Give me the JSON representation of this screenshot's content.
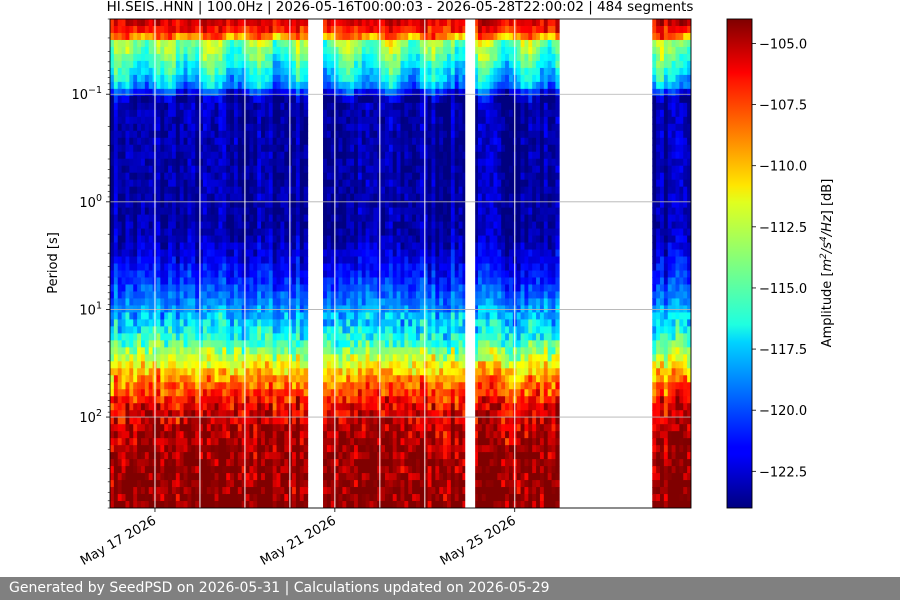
{
  "chart_data": {
    "type": "heatmap",
    "title": "HI.SEIS..HNN | 100.0Hz | 2026-05-16T00:00:03 - 2026-05-28T22:00:02 | 484 segments",
    "station": "HI.SEIS..HNN",
    "sampling_rate": "100.0Hz",
    "start": "2026-05-16T00:00:03",
    "end": "2026-05-28T22:00:02",
    "segment_count": 484,
    "ylabel": "Period [s]",
    "y_scale": "log",
    "y_inverted": true,
    "y_tick_labels": [
      {
        "base": "10",
        "exp": "−1",
        "period": 0.1
      },
      {
        "base": "10",
        "exp": "0",
        "period": 1
      },
      {
        "base": "10",
        "exp": "1",
        "period": 10
      },
      {
        "base": "10",
        "exp": "2",
        "period": 100
      }
    ],
    "ylim": [
      0.02,
      700
    ],
    "x_tick_labels": [
      "May 17 2026",
      "May 21 2026",
      "May 25 2026"
    ],
    "x_ticks_day_offset": [
      1,
      5,
      9
    ],
    "xlim_day_offset": [
      0,
      12.92
    ],
    "grid": "horizontal",
    "data_gaps_day_offset": [
      [
        4.42,
        4.72
      ],
      [
        7.9,
        8.12
      ],
      [
        10.0,
        12.05
      ]
    ],
    "segment_boundaries_day_offset": [
      1.0,
      2.0,
      3.0,
      4.0,
      5.0,
      6.0,
      7.0,
      9.0
    ],
    "colormap": "jet",
    "colorbar": {
      "label": "Amplitude [m²/s⁴/Hz] [dB]",
      "label_prefix": "Amplitude [",
      "label_unit_m": "m",
      "label_unit_m_exp": "2",
      "label_unit_mid": "/s",
      "label_unit_s_exp": "4",
      "label_unit_tail": "/Hz",
      "label_suffix": "] [dB]",
      "range": [
        -124,
        -104
      ],
      "ticks": [
        -105.0,
        -107.5,
        -110.0,
        -112.5,
        -115.0,
        -117.5,
        -120.0,
        -122.5
      ],
      "tick_labels": [
        "−105.0",
        "−107.5",
        "−110.0",
        "−112.5",
        "−115.0",
        "−117.5",
        "−120.0",
        "−122.5"
      ]
    },
    "amplitude_profile_by_period": [
      {
        "period": 0.02,
        "db": -105.5
      },
      {
        "period": 0.028,
        "db": -107.5
      },
      {
        "period": 0.032,
        "db": -113.5
      },
      {
        "period": 0.05,
        "db": -115.5
      },
      {
        "period": 0.08,
        "db": -118
      },
      {
        "period": 0.11,
        "db": -123.2
      },
      {
        "period": 2,
        "db": -123.3
      },
      {
        "period": 5,
        "db": -121
      },
      {
        "period": 10,
        "db": -118.5
      },
      {
        "period": 20,
        "db": -115.5
      },
      {
        "period": 40,
        "db": -110
      },
      {
        "period": 80,
        "db": -106
      },
      {
        "period": 200,
        "db": -104.5
      },
      {
        "period": 700,
        "db": -104
      }
    ]
  },
  "footer": {
    "text": "Generated by SeedPSD on 2026-05-31 | Calculations updated on 2026-05-29"
  }
}
